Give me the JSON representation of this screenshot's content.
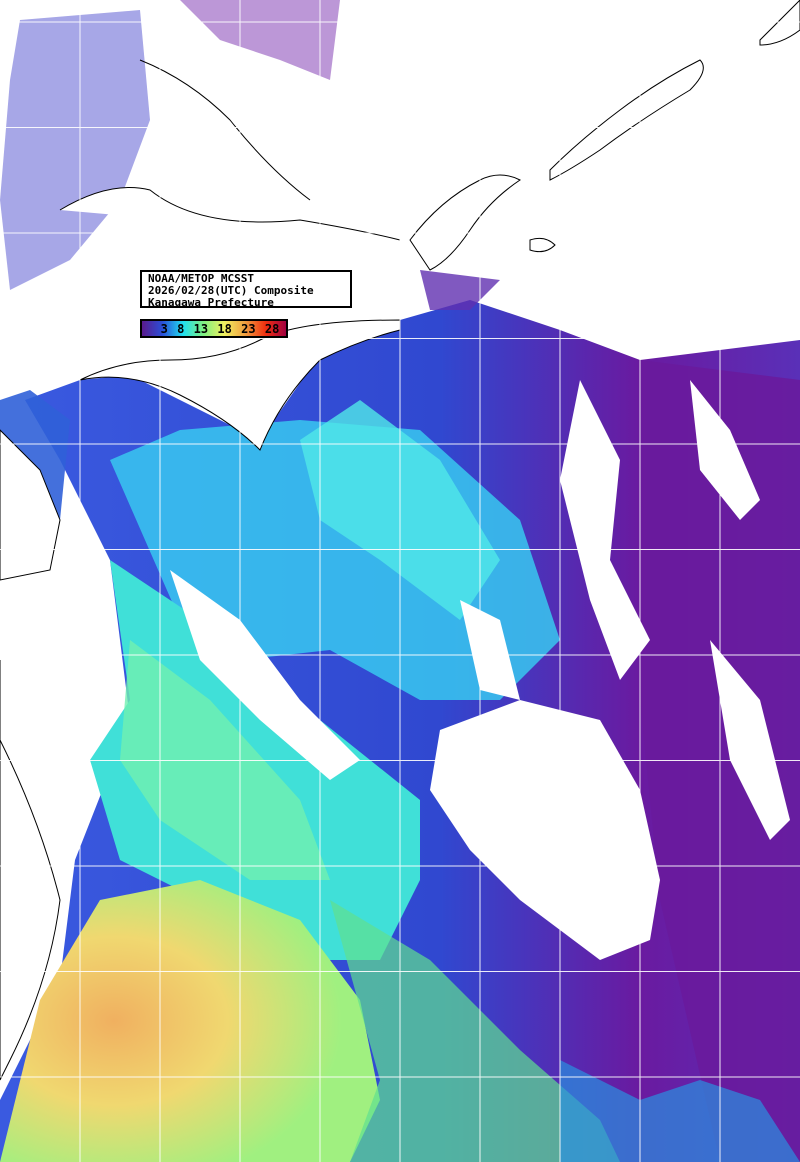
{
  "title": {
    "line1": "NOAA/METOP MCSST",
    "line2": "2026/02/28(UTC) Composite",
    "line3": "Kanagawa Prefecture"
  },
  "colorbar": {
    "ticks": [
      "3",
      "8",
      "13",
      "18",
      "23",
      "28"
    ],
    "colors": [
      "#5a1a8c",
      "#2a4fd8",
      "#20e0f0",
      "#80f080",
      "#f0f060",
      "#f0a040",
      "#f03010",
      "#a00040"
    ]
  },
  "colors": {
    "land": "#ffffff",
    "coastline": "#000000",
    "grid": "#ffffff",
    "cold_water": "#6a1a9c",
    "cool_water": "#3050d8",
    "mid_water": "#30d8f0",
    "warm_water": "#f0d870"
  }
}
